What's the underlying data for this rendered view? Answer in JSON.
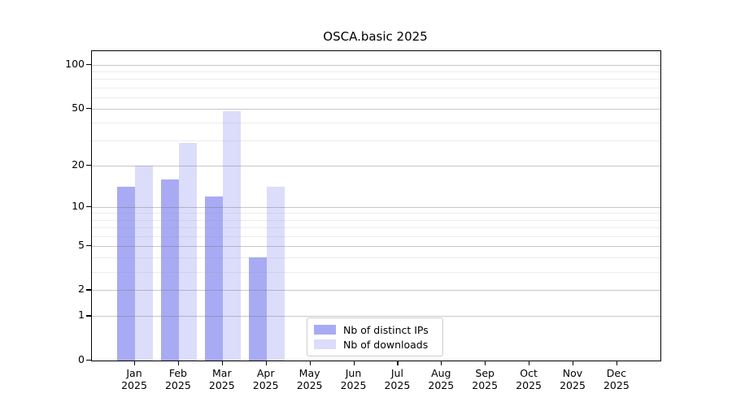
{
  "chart_data": {
    "type": "bar",
    "title": "OSCA.basic 2025",
    "year": "2025",
    "categories": [
      "Jan",
      "Feb",
      "Mar",
      "Apr",
      "May",
      "Jun",
      "Jul",
      "Aug",
      "Sep",
      "Oct",
      "Nov",
      "Dec"
    ],
    "series": [
      {
        "name": "Nb of distinct IPs",
        "color": "#a8abf3",
        "values": [
          14,
          16,
          12,
          4,
          0,
          0,
          0,
          0,
          0,
          0,
          0,
          0
        ]
      },
      {
        "name": "Nb of downloads",
        "color": "#dcddfa",
        "values": [
          20,
          29,
          48,
          14,
          0,
          0,
          0,
          0,
          0,
          0,
          0,
          0
        ]
      }
    ],
    "yscale": "log1p",
    "ylim": [
      0,
      125
    ],
    "yticks": [
      0,
      1,
      2,
      5,
      10,
      20,
      50,
      100
    ],
    "minor_gridlines": [
      3,
      4,
      6,
      7,
      8,
      9,
      30,
      40,
      60,
      70,
      80,
      90
    ],
    "grid": "on",
    "legend_position": "lower center"
  },
  "legend": {
    "items": [
      {
        "label": "Nb of distinct IPs",
        "color": "#a8abf3"
      },
      {
        "label": "Nb of downloads",
        "color": "#dcddfa"
      }
    ]
  }
}
